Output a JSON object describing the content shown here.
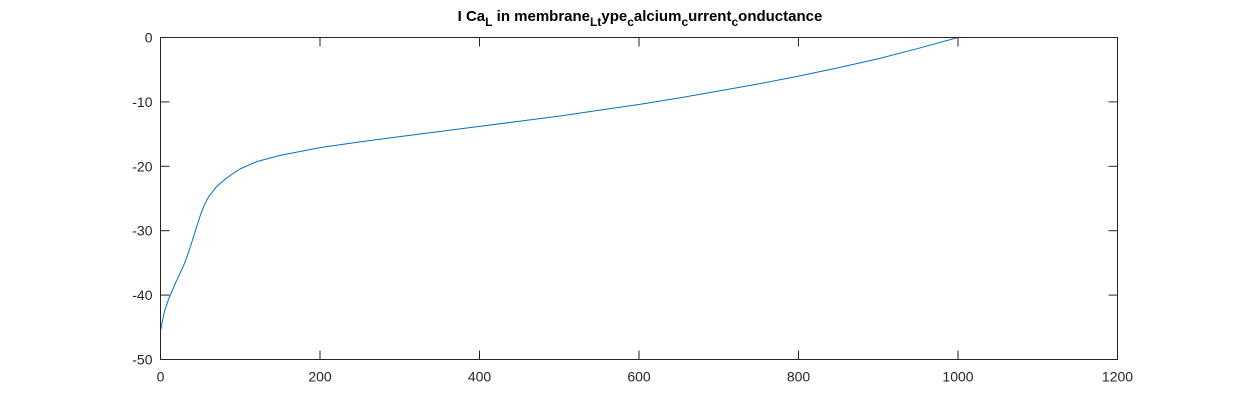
{
  "chart_data": {
    "type": "line",
    "title_parts": [
      {
        "text": "I Ca",
        "sub": false
      },
      {
        "text": "L",
        "sub": true
      },
      {
        "text": " in membrane",
        "sub": false
      },
      {
        "text": "Lt",
        "sub": true
      },
      {
        "text": "ype",
        "sub": false
      },
      {
        "text": "c",
        "sub": true
      },
      {
        "text": "alcium",
        "sub": false
      },
      {
        "text": "c",
        "sub": true
      },
      {
        "text": "urrent",
        "sub": false
      },
      {
        "text": "c",
        "sub": true
      },
      {
        "text": "onductance",
        "sub": false
      }
    ],
    "xlabel": "",
    "ylabel": "",
    "xlim": [
      0,
      1200
    ],
    "ylim": [
      -50,
      0
    ],
    "x_ticks": [
      0,
      200,
      400,
      600,
      800,
      1000,
      1200
    ],
    "y_ticks": [
      0,
      -10,
      -20,
      -30,
      -40,
      -50
    ],
    "x_tick_labels": [
      "0",
      "200",
      "400",
      "600",
      "800",
      "1000",
      "1200"
    ],
    "y_tick_labels": [
      "0",
      "-10",
      "-20",
      "-30",
      "-40",
      "-50"
    ],
    "grid": false,
    "line_color": "#0072bd",
    "series": [
      {
        "x": [
          0,
          5,
          10,
          15,
          20,
          25,
          30,
          35,
          40,
          45,
          50,
          55,
          60,
          70,
          80,
          90,
          100,
          120,
          150,
          200,
          250,
          300,
          350,
          400,
          450,
          500,
          550,
          600,
          650,
          700,
          750,
          800,
          850,
          900,
          950,
          1000
        ],
        "y": [
          -45.5,
          -42.5,
          -40.7,
          -39.2,
          -37.8,
          -36.5,
          -35.1,
          -33.4,
          -31.5,
          -29.5,
          -27.6,
          -26.0,
          -24.8,
          -23.2,
          -22.1,
          -21.2,
          -20.4,
          -19.3,
          -18.3,
          -17.1,
          -16.2,
          -15.4,
          -14.6,
          -13.8,
          -13.0,
          -12.2,
          -11.3,
          -10.4,
          -9.4,
          -8.3,
          -7.2,
          -6.0,
          -4.7,
          -3.3,
          -1.7,
          0.0
        ]
      }
    ]
  }
}
